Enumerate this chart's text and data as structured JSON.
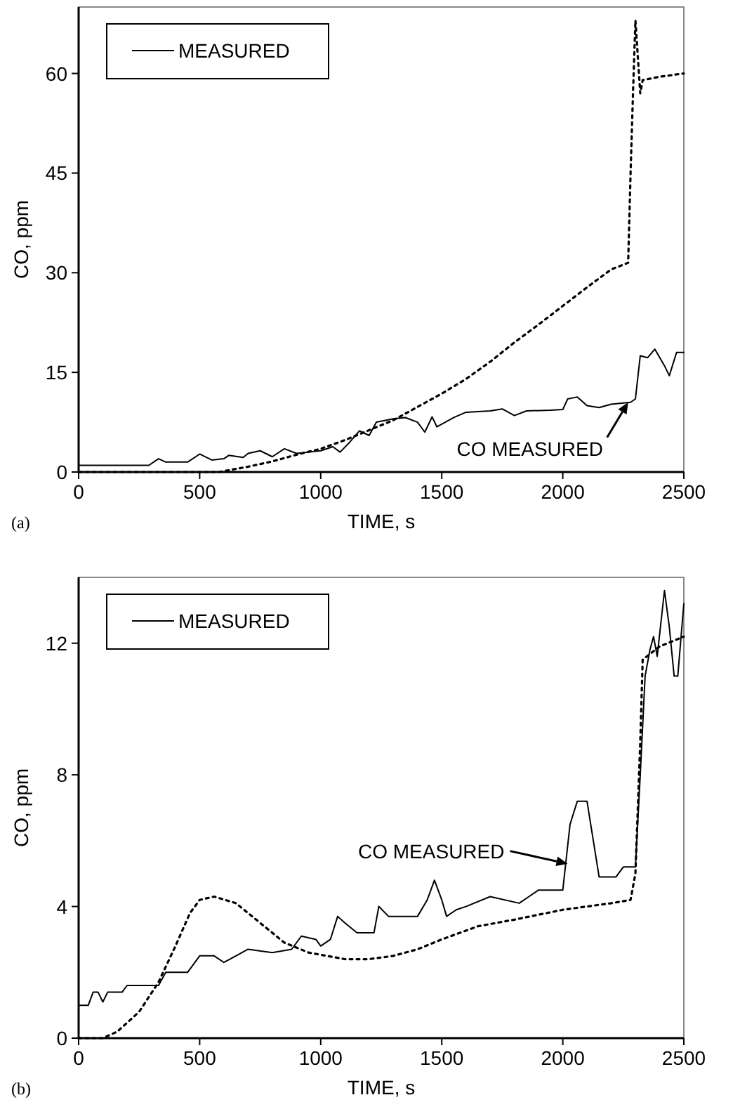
{
  "chart_data": [
    {
      "type": "line",
      "xlabel": "TIME, s",
      "ylabel": "CO, ppm",
      "xlim": [
        0,
        2500
      ],
      "ylim": [
        0,
        70
      ],
      "xticks": [
        0,
        500,
        1000,
        1500,
        2000,
        2500
      ],
      "yticks": [
        0,
        15,
        30,
        45,
        60
      ],
      "legend": "top left",
      "grid": false,
      "series": [
        {
          "name": "MEASURED",
          "color": "#000000",
          "line_style": "solid",
          "x": [
            0,
            290,
            330,
            360,
            400,
            450,
            500,
            550,
            600,
            620,
            680,
            700,
            750,
            800,
            850,
            900,
            950,
            1000,
            1050,
            1080,
            1120,
            1160,
            1200,
            1230,
            1300,
            1350,
            1400,
            1430,
            1460,
            1480,
            1550,
            1600,
            1700,
            1750,
            1800,
            1850,
            1950,
            2000,
            2020,
            2060,
            2100,
            2150,
            2200,
            2280,
            2300,
            2320,
            2350,
            2380,
            2420,
            2440,
            2470,
            2500
          ],
          "values": [
            1,
            1,
            2,
            1.5,
            1.5,
            1.5,
            2.7,
            1.8,
            2,
            2.5,
            2.2,
            2.8,
            3.2,
            2.3,
            3.5,
            2.8,
            3,
            3.2,
            3.8,
            3,
            4.5,
            6.2,
            5.5,
            7.5,
            8,
            8.2,
            7.5,
            6,
            8.3,
            6.8,
            8.2,
            9,
            9.2,
            9.5,
            8.5,
            9.2,
            9.3,
            9.4,
            11,
            11.3,
            10,
            9.7,
            10.2,
            10.5,
            11,
            17.5,
            17.2,
            18.5,
            16,
            14.5,
            18,
            18
          ]
        },
        {
          "color": "#000000",
          "line_style": "dotted",
          "x": [
            0,
            580,
            700,
            800,
            900,
            1000,
            1100,
            1200,
            1300,
            1400,
            1500,
            1600,
            1700,
            1800,
            1900,
            2000,
            2100,
            2200,
            2270,
            2280,
            2290,
            2300,
            2320,
            2330,
            2400,
            2500
          ],
          "values": [
            0,
            0,
            0.8,
            1.6,
            2.6,
            3.5,
            4.8,
            6.3,
            7.8,
            9.8,
            11.8,
            14,
            16.6,
            19.5,
            22.2,
            25,
            27.8,
            30.5,
            31.5,
            45,
            57,
            68,
            57,
            59,
            59.5,
            60
          ]
        }
      ],
      "annotations": [
        {
          "text": "CO MEASURED",
          "x": 2270,
          "y": 10.5
        },
        "(a)"
      ]
    },
    {
      "type": "line",
      "xlabel": "TIME, s",
      "ylabel": "CO, ppm",
      "xlim": [
        0,
        2500
      ],
      "ylim": [
        0,
        14
      ],
      "xticks": [
        0,
        500,
        1000,
        1500,
        2000,
        2500
      ],
      "yticks": [
        0,
        4,
        8,
        12
      ],
      "legend": "top left",
      "grid": false,
      "series": [
        {
          "name": "MEASURED",
          "color": "#000000",
          "line_style": "solid",
          "x": [
            0,
            40,
            60,
            80,
            100,
            120,
            180,
            200,
            330,
            360,
            450,
            500,
            560,
            600,
            650,
            700,
            800,
            880,
            920,
            980,
            1000,
            1040,
            1070,
            1100,
            1150,
            1220,
            1240,
            1280,
            1400,
            1440,
            1470,
            1500,
            1520,
            1560,
            1600,
            1700,
            1820,
            1860,
            1900,
            2000,
            2030,
            2060,
            2100,
            2150,
            2220,
            2250,
            2300,
            2320,
            2340,
            2360,
            2375,
            2390,
            2420,
            2440,
            2460,
            2475,
            2500
          ],
          "values": [
            1,
            1,
            1.4,
            1.4,
            1.1,
            1.4,
            1.4,
            1.6,
            1.6,
            2,
            2,
            2.5,
            2.5,
            2.3,
            2.5,
            2.7,
            2.6,
            2.7,
            3.1,
            3,
            2.8,
            3,
            3.7,
            3.5,
            3.2,
            3.2,
            4,
            3.7,
            3.7,
            4.2,
            4.8,
            4.2,
            3.7,
            3.9,
            4,
            4.3,
            4.1,
            4.3,
            4.5,
            4.5,
            6.5,
            7.2,
            7.2,
            4.9,
            4.9,
            5.2,
            5.2,
            8,
            11,
            11.8,
            12.2,
            11.6,
            13.6,
            12.5,
            11,
            11,
            13.2
          ]
        },
        {
          "color": "#000000",
          "line_style": "dotted",
          "x": [
            0,
            100,
            160,
            250,
            330,
            400,
            460,
            500,
            560,
            650,
            750,
            850,
            950,
            1100,
            1200,
            1300,
            1400,
            1500,
            1650,
            1800,
            2000,
            2200,
            2280,
            2300,
            2320,
            2330,
            2400,
            2500
          ],
          "values": [
            0,
            0,
            0.2,
            0.8,
            1.7,
            2.8,
            3.8,
            4.2,
            4.3,
            4.1,
            3.5,
            2.9,
            2.6,
            2.4,
            2.4,
            2.5,
            2.7,
            3,
            3.4,
            3.6,
            3.9,
            4.1,
            4.2,
            5,
            9,
            11.5,
            11.9,
            12.2
          ]
        }
      ],
      "annotations": [
        {
          "text": "CO MEASURED",
          "x": 2020,
          "y": 5.3
        },
        "(b)"
      ]
    }
  ]
}
